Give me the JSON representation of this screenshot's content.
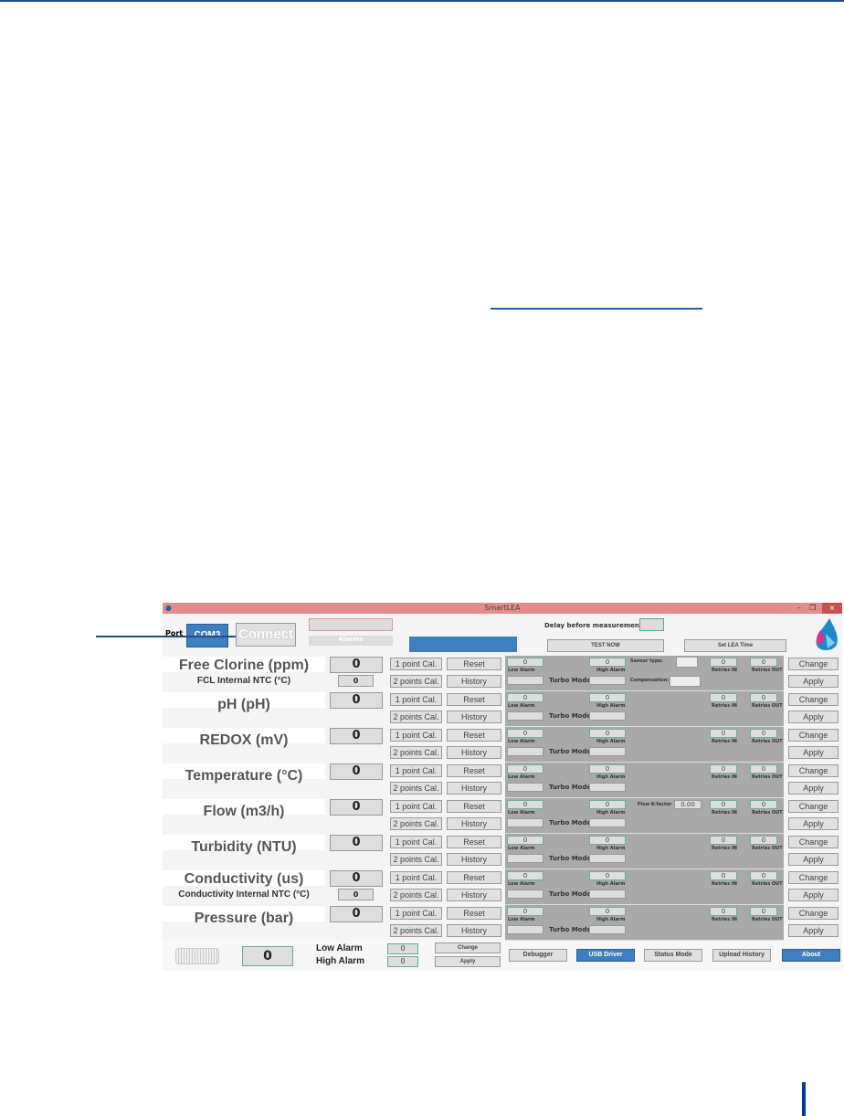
{
  "window": {
    "title": "SmartLEA",
    "min": "–",
    "restore": "❐",
    "close": "×"
  },
  "header": {
    "port_label": "Port",
    "port_value": "COM3",
    "connect": "Connect",
    "alarms": "Alarms",
    "delay_label": "Delay before measurement(sec",
    "test_now": "TEST NOW",
    "set_time": "Set LEA Time"
  },
  "rows": [
    {
      "label": "Free Clorine (ppm)",
      "sub": "FCL Internal NTC (°C)",
      "sub_value": "0",
      "value": "0",
      "extra": "sensor"
    },
    {
      "label": "pH (pH)",
      "value": "0"
    },
    {
      "label": "REDOX (mV)",
      "value": "0"
    },
    {
      "label": "Temperature (°C)",
      "value": "0"
    },
    {
      "label": "Flow (m3/h)",
      "value": "0",
      "extra": "flow"
    },
    {
      "label": "Turbidity (NTU)",
      "value": "0"
    },
    {
      "label": "Conductivity (us)",
      "sub": "Conductivity Internal NTC (°C)",
      "sub_value": "0",
      "value": "0"
    },
    {
      "label": "Pressure (bar)",
      "value": "0"
    }
  ],
  "common": {
    "cal1": "1 point Cal.",
    "cal2": "2 points Cal.",
    "reset": "Reset",
    "history": "History",
    "low_alarm": "Low Alarm",
    "high_alarm": "High Alarm",
    "turbo": "Turbo Mode",
    "retries_in": "Retries IN",
    "retries_out": "Retries OUT",
    "change": "Change",
    "apply": "Apply",
    "zero": "0",
    "sensor_type": "Sensor type:",
    "compensation": "Compensation:",
    "flow_k": "Flow K-factor",
    "flow_k_value": "0.00"
  },
  "bottom": {
    "battery_value": "0",
    "low_alarm": "Low Alarm",
    "high_alarm": "High Alarm",
    "low_value": "0",
    "high_value": "0",
    "change": "Change",
    "apply": "Apply",
    "debugger": "Debugger",
    "usb": "USB Driver",
    "status": "Status Mode",
    "upload": "Upload History",
    "about": "About"
  }
}
